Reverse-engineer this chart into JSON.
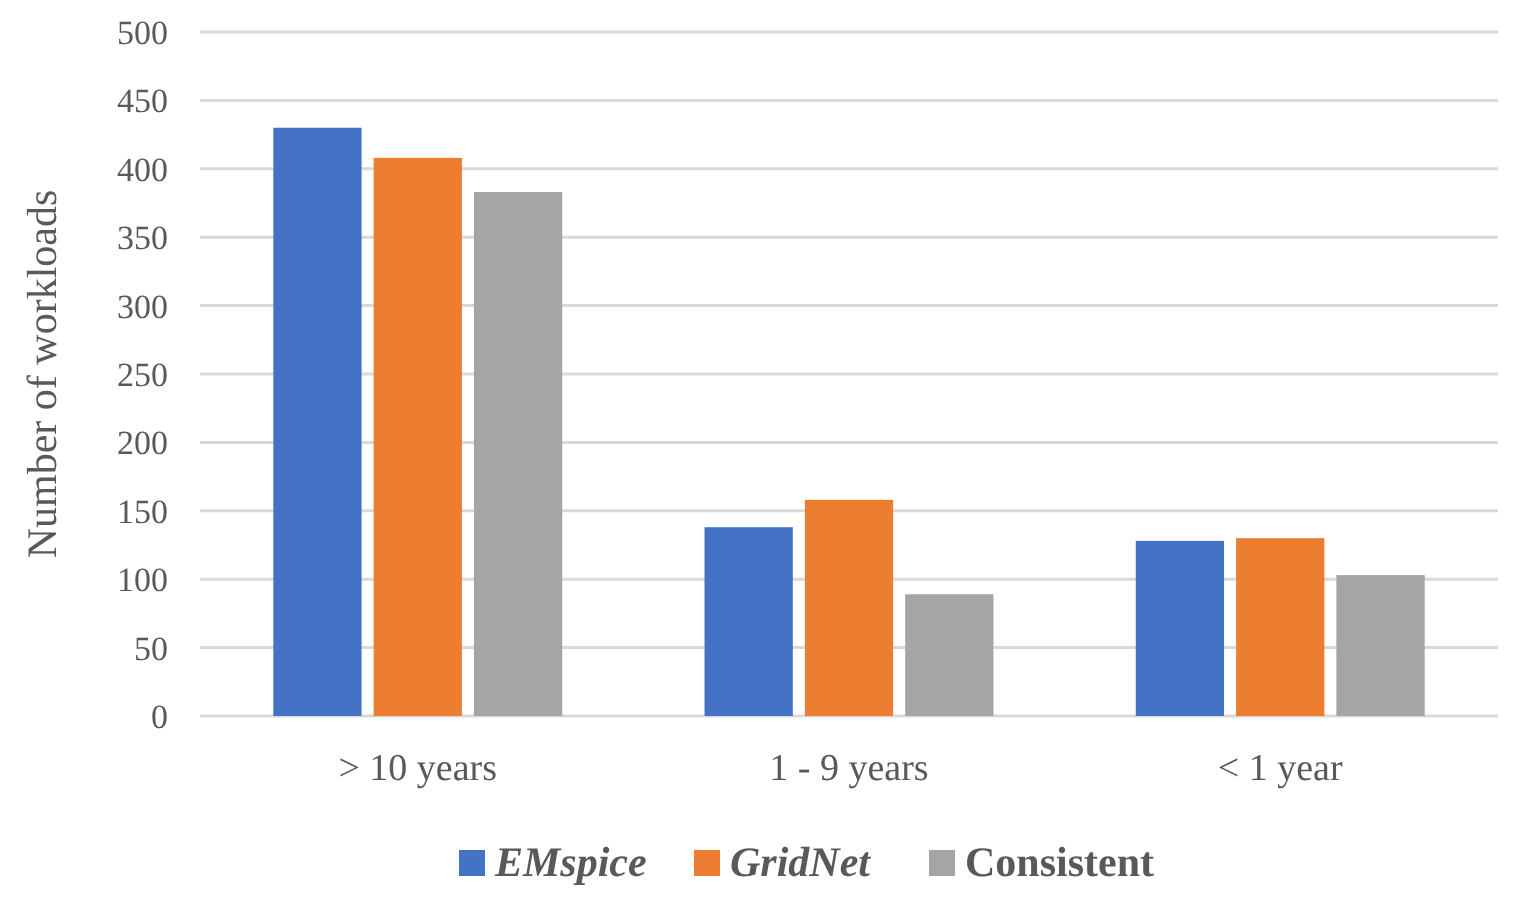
{
  "chart_data": {
    "type": "bar",
    "ylabel": "Number of workloads",
    "categories": [
      "> 10 years",
      "1 - 9 years",
      "< 1 year"
    ],
    "series": [
      {
        "name": "EMspice",
        "color": "#4472c4",
        "values": [
          430,
          138,
          128
        ]
      },
      {
        "name": "GridNet",
        "color": "#ed7d31",
        "values": [
          408,
          158,
          130
        ]
      },
      {
        "name": "Consistent",
        "color": "#a5a5a5",
        "values": [
          383,
          89,
          103
        ]
      }
    ],
    "ylim": [
      0,
      500
    ],
    "yticks": [
      0,
      50,
      100,
      150,
      200,
      250,
      300,
      350,
      400,
      450,
      500
    ],
    "grid": "y",
    "legend": "bottom"
  }
}
